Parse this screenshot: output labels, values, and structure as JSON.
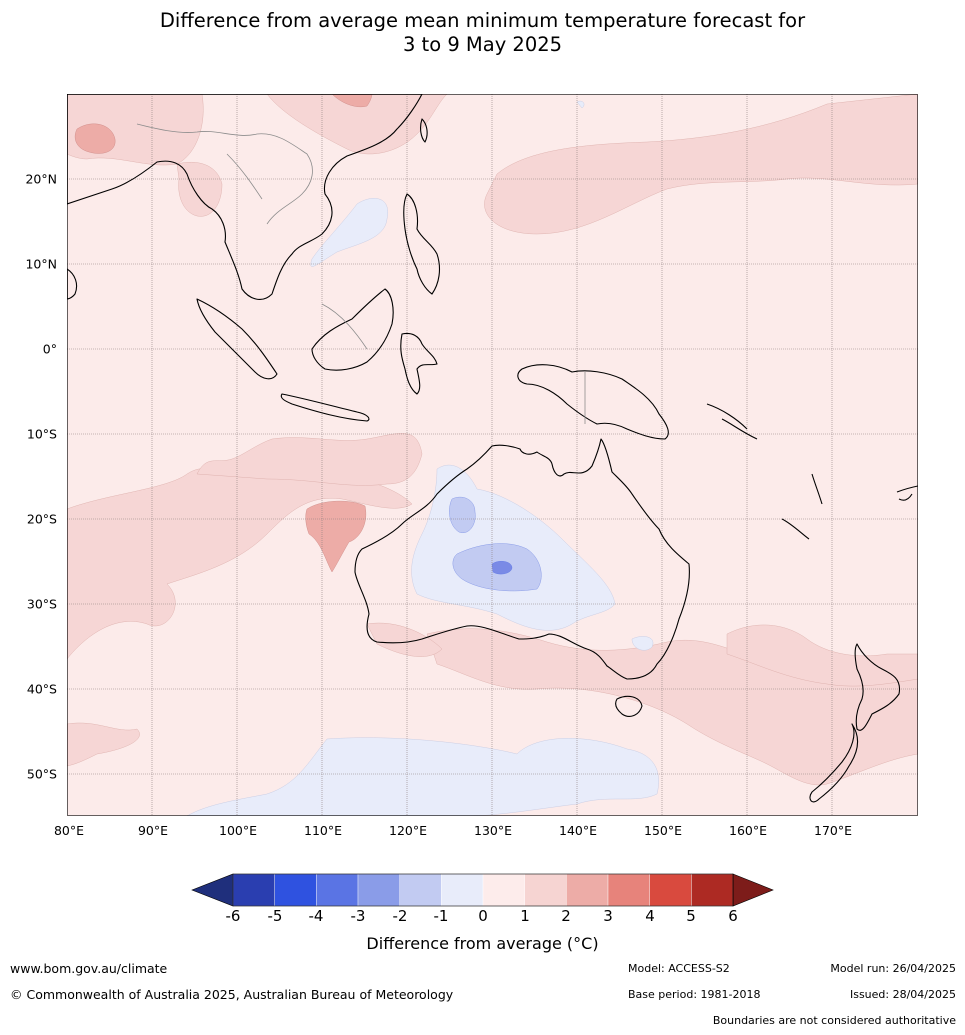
{
  "title_line1": "Difference from average mean minimum temperature forecast for",
  "title_line2": "3 to 9 May 2025",
  "map": {
    "lon_range": [
      80,
      180
    ],
    "lat_range": [
      -55,
      30
    ],
    "lat_labels": [
      "20°N",
      "10°N",
      "0°",
      "10°S",
      "20°S",
      "30°S",
      "40°S",
      "50°S"
    ],
    "lat_values": [
      20,
      10,
      0,
      -10,
      -20,
      -30,
      -40,
      -50
    ],
    "lon_labels": [
      "80°E",
      "90°E",
      "100°E",
      "110°E",
      "120°E",
      "130°E",
      "140°E",
      "150°E",
      "160°E",
      "170°E"
    ],
    "lon_values": [
      80,
      90,
      100,
      110,
      120,
      130,
      140,
      150,
      160,
      170
    ]
  },
  "colorbar": {
    "ticks": [
      "-6",
      "-5",
      "-4",
      "-3",
      "-2",
      "-1",
      "0",
      "1",
      "2",
      "3",
      "4",
      "5",
      "6"
    ],
    "colors": [
      "#1f2f7c",
      "#2a3eb0",
      "#2f52e0",
      "#5a74e4",
      "#8a9ce8",
      "#c2cbf2",
      "#e8ecfa",
      "#fdeceb",
      "#f6d4d2",
      "#edaca7",
      "#e7837b",
      "#d94a3e",
      "#ad2a23",
      "#7d1c1a"
    ],
    "label": "Difference from average (°C)"
  },
  "footer": {
    "website": "www.bom.gov.au/climate",
    "copyright": "© Commonwealth of Australia 2025, Australian Bureau of Meteorology",
    "model": "Model: ACCESS-S2",
    "model_run": "Model run: 26/04/2025",
    "base_period": "Base period: 1981-2018",
    "issued": "Issued: 28/04/2025",
    "disclaimer": "Boundaries are not considered authoritative"
  }
}
